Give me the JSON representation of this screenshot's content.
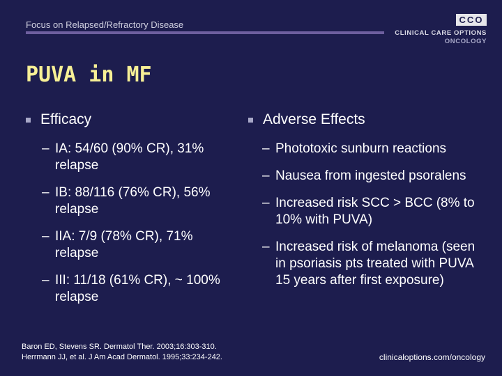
{
  "header": {
    "text": "Focus on Relapsed/Refractory Disease",
    "logo": {
      "mark": "CCO",
      "line1": "CLINICAL CARE OPTIONS",
      "line2": "ONCOLOGY"
    },
    "rule_color": "#6e5f9f"
  },
  "title": "PUVA in MF",
  "title_color": "#f7f096",
  "background_color": "#1d1d4e",
  "left": {
    "heading": "Efficacy",
    "items": [
      "IA: 54/60 (90% CR), 31% relapse",
      "IB: 88/116 (76% CR), 56% relapse",
      "IIA: 7/9 (78% CR), 71% relapse",
      "III: 11/18 (61% CR), ~ 100% relapse"
    ]
  },
  "right": {
    "heading": "Adverse Effects",
    "items": [
      "Phototoxic sunburn reactions",
      "Nausea from ingested psoralens",
      "Increased risk SCC > BCC (8% to 10% with PUVA)",
      "Increased risk of melanoma (seen in psoriasis pts treated with PUVA 15 years after first exposure)"
    ]
  },
  "references": [
    "Baron ED, Stevens SR. Dermatol Ther. 2003;16:303-310.",
    "Herrmann JJ, et al. J Am Acad Dermatol. 1995;33:234-242."
  ],
  "footer_url": "clinicaloptions.com/oncology"
}
